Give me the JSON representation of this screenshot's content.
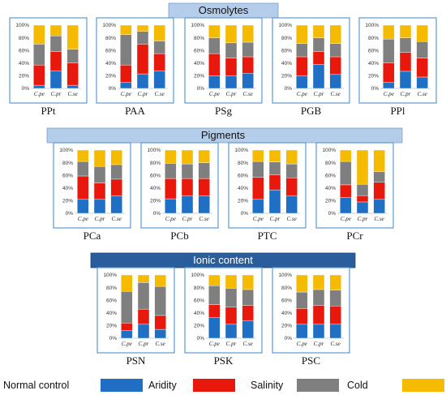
{
  "section_titles": [
    "Osmolytes",
    "Pigments",
    "Ionic content"
  ],
  "legend": {
    "items": [
      "Normal control",
      "Aridity",
      "Salinity",
      "Cold"
    ],
    "colors": [
      "#1f6fc5",
      "#e8190c",
      "#7f7f7f",
      "#f5bb00"
    ]
  },
  "colors": {
    "banner_light": "#b4cdea",
    "banner_dark": "#2a5d9c",
    "panel_border": "#5b9bd5"
  },
  "chart_data": [
    {
      "type": "bar",
      "stacked": true,
      "title": "PPt",
      "categories": [
        "C.pe",
        "C.pr",
        "C.se"
      ],
      "y_ticks": [
        "0%",
        "20%",
        "40%",
        "60%",
        "80%",
        "100%"
      ],
      "ylim": [
        0,
        100
      ],
      "series": [
        {
          "values": [
            5,
            28,
            5
          ]
        },
        {
          "values": [
            32,
            30,
            35
          ]
        },
        {
          "values": [
            33,
            25,
            22
          ]
        },
        {
          "values": [
            30,
            17,
            38
          ]
        }
      ]
    },
    {
      "type": "bar",
      "stacked": true,
      "title": "PAA",
      "categories": [
        "C.pe",
        "C.pr",
        "C.se"
      ],
      "y_ticks": [
        "0%",
        "20%",
        "40%",
        "60%",
        "80%",
        "100%"
      ],
      "ylim": [
        0,
        100
      ],
      "series": [
        {
          "values": [
            10,
            23,
            28
          ]
        },
        {
          "values": [
            27,
            47,
            27
          ]
        },
        {
          "values": [
            48,
            20,
            20
          ]
        },
        {
          "values": [
            15,
            10,
            25
          ]
        }
      ]
    },
    {
      "type": "bar",
      "stacked": true,
      "title": "PSg",
      "categories": [
        "C.pe",
        "C.pr",
        "C.se"
      ],
      "y_ticks": [
        "0%",
        "20%",
        "40%",
        "60%",
        "80%",
        "100%"
      ],
      "ylim": [
        0,
        100
      ],
      "series": [
        {
          "values": [
            20,
            20,
            24
          ]
        },
        {
          "values": [
            35,
            28,
            26
          ]
        },
        {
          "values": [
            25,
            24,
            23
          ]
        },
        {
          "values": [
            20,
            28,
            27
          ]
        }
      ]
    },
    {
      "type": "bar",
      "stacked": true,
      "title": "PGB",
      "categories": [
        "C.pe",
        "C.pr",
        "C.se"
      ],
      "y_ticks": [
        "0%",
        "20%",
        "40%",
        "60%",
        "80%",
        "100%"
      ],
      "ylim": [
        0,
        100
      ],
      "series": [
        {
          "values": [
            20,
            38,
            22
          ]
        },
        {
          "values": [
            30,
            20,
            28
          ]
        },
        {
          "values": [
            21,
            22,
            21
          ]
        },
        {
          "values": [
            29,
            20,
            29
          ]
        }
      ]
    },
    {
      "type": "bar",
      "stacked": true,
      "title": "PPl",
      "categories": [
        "C.pe",
        "C.pr",
        "C.se"
      ],
      "y_ticks": [
        "0%",
        "20%",
        "40%",
        "60%",
        "80%",
        "100%"
      ],
      "ylim": [
        0,
        100
      ],
      "series": [
        {
          "values": [
            10,
            27,
            18
          ]
        },
        {
          "values": [
            30,
            30,
            30
          ]
        },
        {
          "values": [
            38,
            23,
            26
          ]
        },
        {
          "values": [
            22,
            20,
            26
          ]
        }
      ]
    },
    {
      "type": "bar",
      "stacked": true,
      "title": "PCa",
      "categories": [
        "C.pe",
        "C.pr",
        "C.se"
      ],
      "y_ticks": [
        "0%",
        "20%",
        "40%",
        "60%",
        "80%",
        "100%"
      ],
      "ylim": [
        0,
        100
      ],
      "series": [
        {
          "values": [
            22,
            22,
            28
          ]
        },
        {
          "values": [
            37,
            26,
            26
          ]
        },
        {
          "values": [
            23,
            26,
            23
          ]
        },
        {
          "values": [
            18,
            26,
            23
          ]
        }
      ]
    },
    {
      "type": "bar",
      "stacked": true,
      "title": "PCb",
      "categories": [
        "C.pe",
        "C.pr",
        "C.se"
      ],
      "y_ticks": [
        "0%",
        "20%",
        "40%",
        "60%",
        "80%",
        "100%"
      ],
      "ylim": [
        0,
        100
      ],
      "series": [
        {
          "values": [
            23,
            28,
            28
          ]
        },
        {
          "values": [
            32,
            27,
            27
          ]
        },
        {
          "values": [
            24,
            23,
            25
          ]
        },
        {
          "values": [
            21,
            22,
            20
          ]
        }
      ]
    },
    {
      "type": "bar",
      "stacked": true,
      "title": "PTC",
      "categories": [
        "C.pe",
        "C.pr",
        "C.se"
      ],
      "y_ticks": [
        "0%",
        "20%",
        "40%",
        "60%",
        "80%",
        "100%"
      ],
      "ylim": [
        0,
        100
      ],
      "series": [
        {
          "values": [
            22,
            37,
            28
          ]
        },
        {
          "values": [
            35,
            24,
            28
          ]
        },
        {
          "values": [
            25,
            20,
            22
          ]
        },
        {
          "values": [
            18,
            19,
            22
          ]
        }
      ]
    },
    {
      "type": "bar",
      "stacked": true,
      "title": "PCr",
      "categories": [
        "C.pe",
        "C.pr",
        "C.se"
      ],
      "y_ticks": [
        "0%",
        "20%",
        "40%",
        "60%",
        "80%",
        "100%"
      ],
      "ylim": [
        0,
        100
      ],
      "series": [
        {
          "values": [
            25,
            18,
            22
          ]
        },
        {
          "values": [
            20,
            10,
            27
          ]
        },
        {
          "values": [
            37,
            18,
            17
          ]
        },
        {
          "values": [
            18,
            54,
            34
          ]
        }
      ]
    },
    {
      "type": "bar",
      "stacked": true,
      "title": "PSN",
      "categories": [
        "C.pe",
        "C.pr",
        "C.se"
      ],
      "y_ticks": [
        "0%",
        "20%",
        "40%",
        "60%",
        "80%",
        "100%"
      ],
      "ylim": [
        0,
        100
      ],
      "series": [
        {
          "values": [
            12,
            22,
            14
          ]
        },
        {
          "values": [
            12,
            24,
            22
          ]
        },
        {
          "values": [
            50,
            42,
            46
          ]
        },
        {
          "values": [
            26,
            12,
            18
          ]
        }
      ]
    },
    {
      "type": "bar",
      "stacked": true,
      "title": "PSK",
      "categories": [
        "C.pe",
        "C.pr",
        "C.se"
      ],
      "y_ticks": [
        "0%",
        "20%",
        "40%",
        "60%",
        "80%",
        "100%"
      ],
      "ylim": [
        0,
        100
      ],
      "series": [
        {
          "values": [
            33,
            22,
            28
          ]
        },
        {
          "values": [
            20,
            27,
            24
          ]
        },
        {
          "values": [
            30,
            30,
            25
          ]
        },
        {
          "values": [
            17,
            21,
            23
          ]
        }
      ]
    },
    {
      "type": "bar",
      "stacked": true,
      "title": "PSC",
      "categories": [
        "C.pe",
        "C.pr",
        "C.se"
      ],
      "y_ticks": [
        "0%",
        "20%",
        "40%",
        "60%",
        "80%",
        "100%"
      ],
      "ylim": [
        0,
        100
      ],
      "series": [
        {
          "values": [
            22,
            22,
            22
          ]
        },
        {
          "values": [
            25,
            30,
            29
          ]
        },
        {
          "values": [
            26,
            25,
            25
          ]
        },
        {
          "values": [
            27,
            23,
            24
          ]
        }
      ]
    }
  ]
}
